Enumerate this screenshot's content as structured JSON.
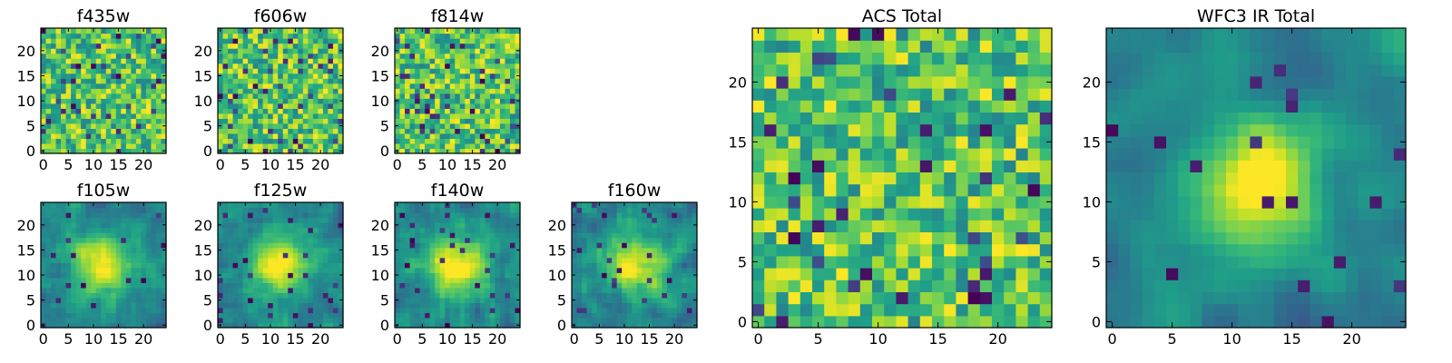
{
  "chart_data": {
    "type": "heatmap",
    "colormap": "viridis",
    "grid": false,
    "panels": [
      {
        "name": "f435w",
        "title": "f435w",
        "grid_size": 25,
        "x_ticks": [
          0,
          5,
          10,
          15,
          20
        ],
        "y_ticks": [
          0,
          5,
          10,
          15,
          20
        ],
        "xlim": [
          -0.5,
          24.5
        ],
        "ylim": [
          -0.5,
          24.5
        ],
        "pattern": "noise",
        "seed": 11
      },
      {
        "name": "f606w",
        "title": "f606w",
        "grid_size": 25,
        "x_ticks": [
          0,
          5,
          10,
          15,
          20
        ],
        "y_ticks": [
          0,
          5,
          10,
          15,
          20
        ],
        "xlim": [
          -0.5,
          24.5
        ],
        "ylim": [
          -0.5,
          24.5
        ],
        "pattern": "noise",
        "seed": 23
      },
      {
        "name": "f814w",
        "title": "f814w",
        "grid_size": 25,
        "x_ticks": [
          0,
          5,
          10,
          15,
          20
        ],
        "y_ticks": [
          0,
          5,
          10,
          15,
          20
        ],
        "xlim": [
          -0.5,
          24.5
        ],
        "ylim": [
          -0.5,
          24.5
        ],
        "pattern": "noise",
        "seed": 37
      },
      {
        "name": "f105w",
        "title": "f105w",
        "grid_size": 25,
        "x_ticks": [
          0,
          5,
          10,
          15,
          20
        ],
        "y_ticks": [
          0,
          5,
          10,
          15,
          20
        ],
        "xlim": [
          -0.5,
          24.5
        ],
        "ylim": [
          -0.5,
          24.5
        ],
        "pattern": "blob",
        "seed": 41
      },
      {
        "name": "f125w",
        "title": "f125w",
        "grid_size": 25,
        "x_ticks": [
          0,
          5,
          10,
          15,
          20
        ],
        "y_ticks": [
          0,
          5,
          10,
          15,
          20
        ],
        "xlim": [
          -0.5,
          24.5
        ],
        "ylim": [
          -0.5,
          24.5
        ],
        "pattern": "blob",
        "seed": 53
      },
      {
        "name": "f140w",
        "title": "f140w",
        "grid_size": 25,
        "x_ticks": [
          0,
          5,
          10,
          15,
          20
        ],
        "y_ticks": [
          0,
          5,
          10,
          15,
          20
        ],
        "xlim": [
          -0.5,
          24.5
        ],
        "ylim": [
          -0.5,
          24.5
        ],
        "pattern": "blob",
        "seed": 67
      },
      {
        "name": "f160w",
        "title": "f160w",
        "grid_size": 25,
        "x_ticks": [
          0,
          5,
          10,
          15,
          20
        ],
        "y_ticks": [
          0,
          5,
          10,
          15,
          20
        ],
        "xlim": [
          -0.5,
          24.5
        ],
        "ylim": [
          -0.5,
          24.5
        ],
        "pattern": "blob",
        "seed": 79
      },
      {
        "name": "acs-total",
        "title": "ACS Total",
        "grid_size": 25,
        "x_ticks": [
          0,
          5,
          10,
          15,
          20
        ],
        "y_ticks": [
          0,
          5,
          10,
          15,
          20
        ],
        "xlim": [
          -0.5,
          24.5
        ],
        "ylim": [
          -0.5,
          24.5
        ],
        "pattern": "noise",
        "seed": 97
      },
      {
        "name": "wfc3-ir-total",
        "title": "WFC3 IR Total",
        "grid_size": 25,
        "x_ticks": [
          0,
          5,
          10,
          15,
          20
        ],
        "y_ticks": [
          0,
          5,
          10,
          15,
          20
        ],
        "xlim": [
          -0.5,
          24.5
        ],
        "ylim": [
          -0.5,
          24.5
        ],
        "pattern": "smooth-blob",
        "seed": 101
      }
    ]
  }
}
